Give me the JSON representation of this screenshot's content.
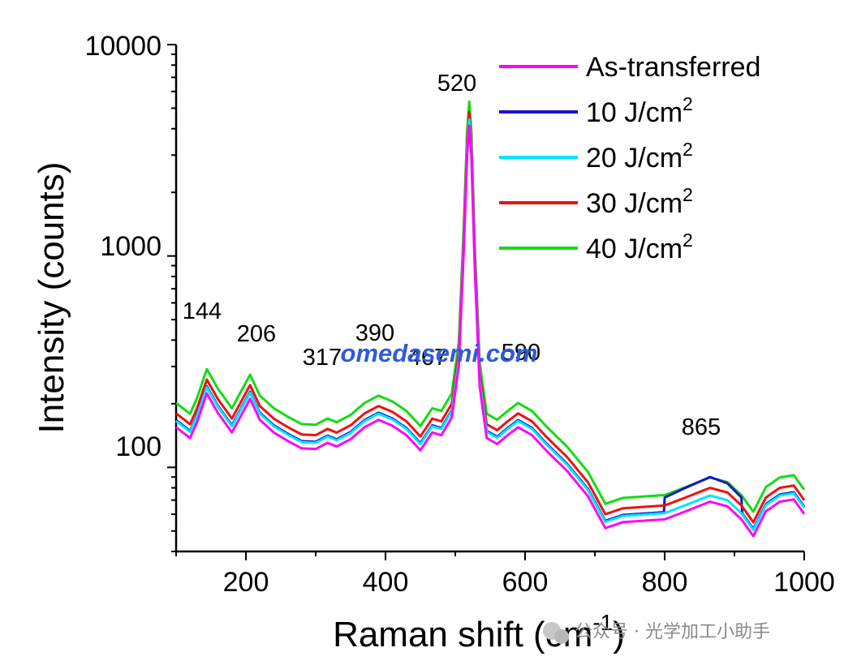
{
  "chart_data": {
    "type": "line",
    "title": "",
    "xlabel": "Raman shift (cm",
    "xlabel_sup": "-1",
    "xlabel_end": ")",
    "ylabel": "Intensity (counts)",
    "xlim": [
      100,
      1000
    ],
    "ylim": [
      40,
      10000
    ],
    "yscale": "log",
    "x_ticks": [
      200,
      400,
      600,
      800,
      1000
    ],
    "y_ticks": [
      100,
      1000,
      10000
    ],
    "x_tick_labels": [
      "200",
      "400",
      "600",
      "800",
      "1000"
    ],
    "y_tick_labels": [
      "100",
      "1000",
      "10000"
    ],
    "legend_position": "top-right",
    "series": [
      {
        "name": "As-transferred",
        "unit": "",
        "color": "#ff00ff",
        "scale": 0.86,
        "above_nm": ""
      },
      {
        "name": "10 J/cm",
        "unit": "2",
        "color": "#1515c8",
        "scale": 0.93,
        "above_nm": ""
      },
      {
        "name": "20 J/cm",
        "unit": "2",
        "color": "#00e5ff",
        "scale": 0.92,
        "above_nm": ""
      },
      {
        "name": "30 J/cm",
        "unit": "2",
        "color": "#ee1111",
        "scale": 1.0,
        "above_nm": ""
      },
      {
        "name": "40 J/cm",
        "unit": "2",
        "color": "#11dd11",
        "scale": 1.12,
        "above_nm": ""
      }
    ],
    "reference_profile": {
      "x": [
        100,
        120,
        130,
        144,
        160,
        180,
        195,
        206,
        220,
        240,
        260,
        280,
        300,
        317,
        330,
        350,
        370,
        390,
        410,
        430,
        450,
        467,
        480,
        495,
        505,
        512,
        517,
        520,
        523,
        528,
        535,
        545,
        560,
        575,
        590,
        610,
        630,
        660,
        690,
        715,
        740,
        770,
        800,
        830,
        865,
        890,
        910,
        927,
        945,
        965,
        985,
        1000
      ],
      "y": [
        180,
        160,
        190,
        260,
        210,
        170,
        210,
        245,
        195,
        170,
        155,
        143,
        142,
        152,
        146,
        158,
        180,
        195,
        183,
        165,
        140,
        170,
        165,
        200,
        350,
        1200,
        3500,
        4800,
        3500,
        1000,
        280,
        160,
        150,
        165,
        180,
        165,
        140,
        112,
        85,
        60,
        64,
        65,
        66,
        72,
        80,
        76,
        66,
        55,
        72,
        80,
        82,
        70
      ]
    },
    "series_adjust": {
      "10 J/cm": {
        "x": [
          800,
          830,
          865,
          890,
          910
        ],
        "y": [
          72,
          80,
          90,
          84,
          72
        ]
      }
    },
    "annotations": [
      {
        "text": "144",
        "x": 144
      },
      {
        "text": "206",
        "x": 206
      },
      {
        "text": "317",
        "x": 317
      },
      {
        "text": "390",
        "x": 390
      },
      {
        "text": "467",
        "x": 467
      },
      {
        "text": "520",
        "x": 520
      },
      {
        "text": "590",
        "x": 590
      },
      {
        "text": "865",
        "x": 865
      }
    ]
  },
  "watermark": "omedasemi.com",
  "footer": "公众号 · 光学加工小助手"
}
